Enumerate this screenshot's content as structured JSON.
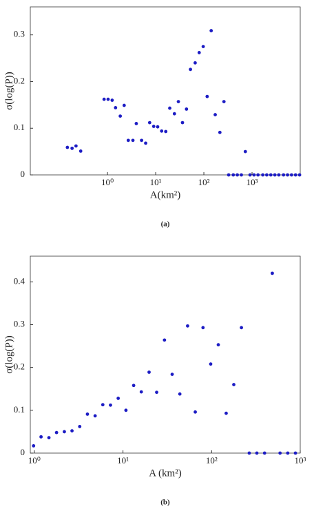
{
  "chart_data": [
    {
      "type": "scatter",
      "caption": "(a)",
      "xlabel": "A(km²)",
      "ylabel": "σ(log(P))",
      "log_x": true,
      "color": "#1c1cc4",
      "xlim": [
        0.025,
        10000
      ],
      "ylim": [
        0,
        0.36
      ],
      "xticks": [
        {
          "value": 1,
          "label": "10⁰"
        },
        {
          "value": 10,
          "label": "10¹"
        },
        {
          "value": 100,
          "label": "10²"
        },
        {
          "value": 1000,
          "label": "10³"
        }
      ],
      "yticks": [
        0,
        0.1,
        0.2,
        0.3
      ],
      "x": [
        0.147,
        0.184,
        0.222,
        0.278,
        0.85,
        1.03,
        1.25,
        1.47,
        1.84,
        2.22,
        2.7,
        3.37,
        3.96,
        5.1,
        6.2,
        7.5,
        9.1,
        11,
        13.3,
        16.2,
        19.6,
        24.5,
        29.6,
        36,
        43.6,
        52.7,
        66,
        80,
        97,
        117,
        142,
        172,
        215,
        261,
        327,
        408,
        494,
        600,
        726,
        908,
        1100,
        1330,
        1670,
        2020,
        2450,
        2970,
        3590,
        4500,
        5450,
        6600,
        8000,
        9700
      ],
      "values": [
        0.059,
        0.057,
        0.062,
        0.051,
        0.162,
        0.162,
        0.16,
        0.144,
        0.126,
        0.149,
        0.074,
        0.074,
        0.11,
        0.074,
        0.068,
        0.112,
        0.104,
        0.103,
        0.094,
        0.093,
        0.143,
        0.131,
        0.157,
        0.112,
        0.141,
        0.226,
        0.24,
        0.262,
        0.275,
        0.168,
        0.309,
        0.129,
        0.091,
        0.157,
        0,
        0,
        0,
        0,
        0.05,
        0,
        0,
        0,
        0,
        0,
        0,
        0,
        0,
        0,
        0,
        0,
        0,
        0
      ]
    },
    {
      "type": "scatter",
      "caption": "(b)",
      "xlabel": "A (km²)",
      "ylabel": "σ(log(P))",
      "log_x": true,
      "color": "#1c1cc4",
      "xlim": [
        0.9,
        1000
      ],
      "ylim": [
        0,
        0.46
      ],
      "xticks": [
        {
          "value": 1,
          "label": "10⁰"
        },
        {
          "value": 10,
          "label": "10¹"
        },
        {
          "value": 100,
          "label": "10²"
        },
        {
          "value": 1000,
          "label": "10³"
        }
      ],
      "yticks": [
        0,
        0.1,
        0.2,
        0.3,
        0.4
      ],
      "x": [
        0.98,
        1.19,
        1.46,
        1.78,
        2.18,
        2.66,
        3.25,
        3.97,
        4.85,
        5.92,
        7.23,
        8.83,
        10.8,
        13.2,
        16.1,
        19.7,
        24,
        29.4,
        35.9,
        43.8,
        53.6,
        65.4,
        80,
        97.7,
        119,
        146,
        178,
        217,
        266,
        324,
        396,
        484,
        592,
        723,
        883
      ],
      "values": [
        0.017,
        0.038,
        0.036,
        0.048,
        0.05,
        0.052,
        0.062,
        0.091,
        0.087,
        0.113,
        0.112,
        0.128,
        0.1,
        0.158,
        0.143,
        0.189,
        0.142,
        0.264,
        0.184,
        0.138,
        0.297,
        0.096,
        0.293,
        0.208,
        0.253,
        0.093,
        0.16,
        0.293,
        0,
        0,
        0,
        0.42,
        0,
        0,
        0
      ]
    }
  ]
}
